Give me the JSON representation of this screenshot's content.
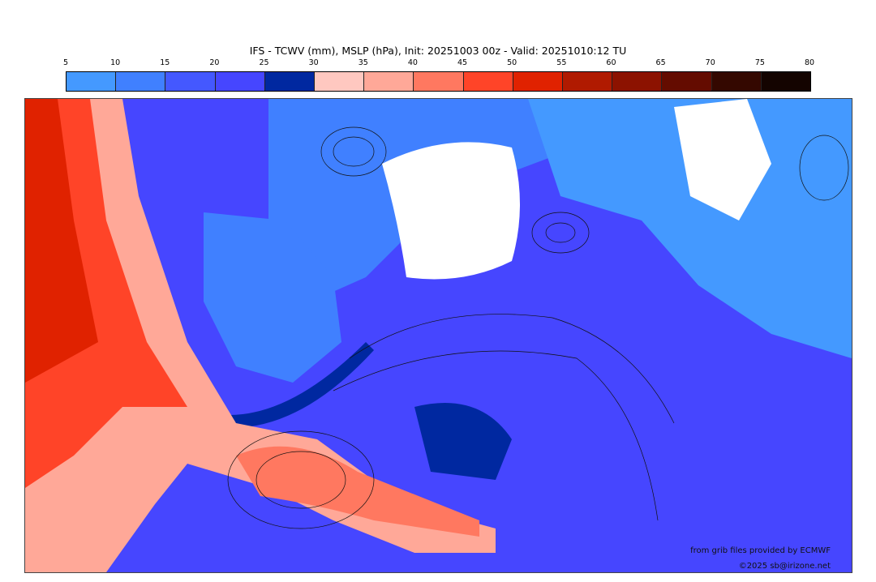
{
  "title": "IFS - TCWV (mm), MSLP (hPa), Init: 20251003 00z - Valid: 20251010:12 TU",
  "colorbar": {
    "ticks": [
      "5",
      "10",
      "15",
      "20",
      "25",
      "30",
      "35",
      "40",
      "45",
      "50",
      "55",
      "60",
      "65",
      "70",
      "75",
      "80"
    ],
    "colors": [
      "#4499ff",
      "#4080ff",
      "#4458ff",
      "#4646ff",
      "#0028a0",
      "#ffc8c0",
      "#ffa898",
      "#ff7860",
      "#ff4428",
      "#e02200",
      "#b01a00",
      "#8c1200",
      "#640c00",
      "#340800",
      "#140400"
    ]
  },
  "credits": {
    "source": "from grib files provided by ECMWF",
    "copyright": "©2025 sb@irizone.net"
  }
}
